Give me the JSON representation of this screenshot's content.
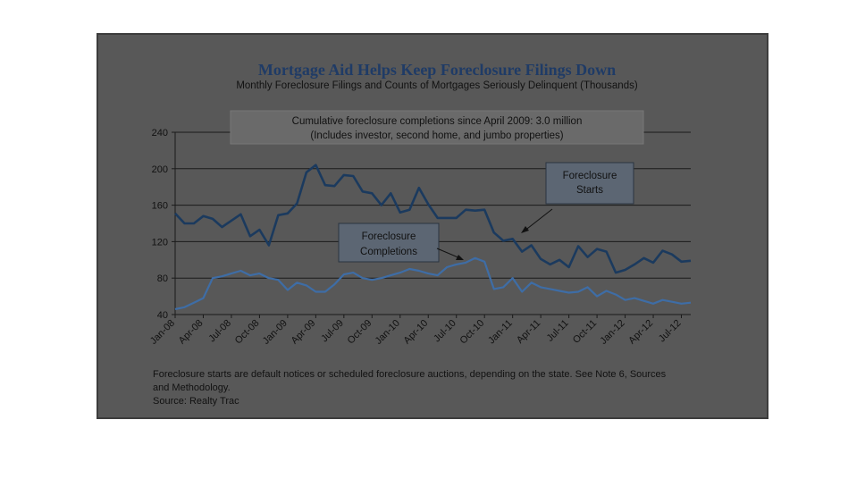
{
  "chart_data": {
    "type": "line",
    "title": "Mortgage Aid Helps Keep Foreclosure Filings Down",
    "subtitle": "Monthly Foreclosure Filings and Counts of Mortgages Seriously Delinquent (Thousands)",
    "ylim": [
      40,
      240
    ],
    "yticks": [
      "40",
      "80",
      "120",
      "160",
      "200",
      "240"
    ],
    "xtick_labels": [
      "Jan-08",
      "Apr-08",
      "Jul-08",
      "Oct-08",
      "Jan-09",
      "Apr-09",
      "Jul-09",
      "Oct-09",
      "Jan-10",
      "Apr-10",
      "Jul-10",
      "Oct-10",
      "Jan-11",
      "Apr-11",
      "Jul-11",
      "Oct-11",
      "Jan-12",
      "Apr-12",
      "Jul-12"
    ],
    "annotation_box": {
      "line1": "Cumulative foreclosure completions since April 2009: 3.0 million",
      "line2": "(Includes investor, second home, and jumbo properties)"
    },
    "series": [
      {
        "name": "Foreclosure Starts",
        "label_line1": "Foreclosure",
        "label_line2": "Starts",
        "color": "#1b3a5e",
        "values": [
          151,
          140,
          140,
          148,
          145,
          136,
          143,
          150,
          126,
          133,
          116,
          149,
          151,
          162,
          196,
          204,
          182,
          181,
          193,
          192,
          175,
          173,
          160,
          173,
          152,
          155,
          179,
          161,
          146,
          146,
          146,
          155,
          154,
          155,
          130,
          121,
          123,
          109,
          116,
          101,
          95,
          100,
          92,
          115,
          103,
          112,
          109,
          86,
          89,
          95,
          102,
          97,
          110,
          106,
          98,
          99
        ]
      },
      {
        "name": "Foreclosure Completions",
        "label_line1": "Foreclosure",
        "label_line2": "Completions",
        "color": "#3e6da6",
        "values": [
          46,
          48,
          53,
          58,
          80,
          82,
          85,
          88,
          83,
          85,
          80,
          78,
          67,
          75,
          72,
          65,
          65,
          73,
          84,
          86,
          80,
          78,
          80,
          83,
          86,
          90,
          88,
          85,
          83,
          92,
          95,
          97,
          102,
          98,
          68,
          70,
          80,
          65,
          75,
          70,
          68,
          66,
          64,
          65,
          70,
          60,
          66,
          62,
          56,
          58,
          55,
          52,
          56,
          54,
          52,
          53
        ]
      }
    ]
  },
  "footnote": {
    "line1": "Foreclosure starts are default notices or scheduled foreclosure auctions, depending on the state. See Note 6, Sources",
    "line2": "and Methodology.",
    "source": "Source: Realty Trac"
  }
}
